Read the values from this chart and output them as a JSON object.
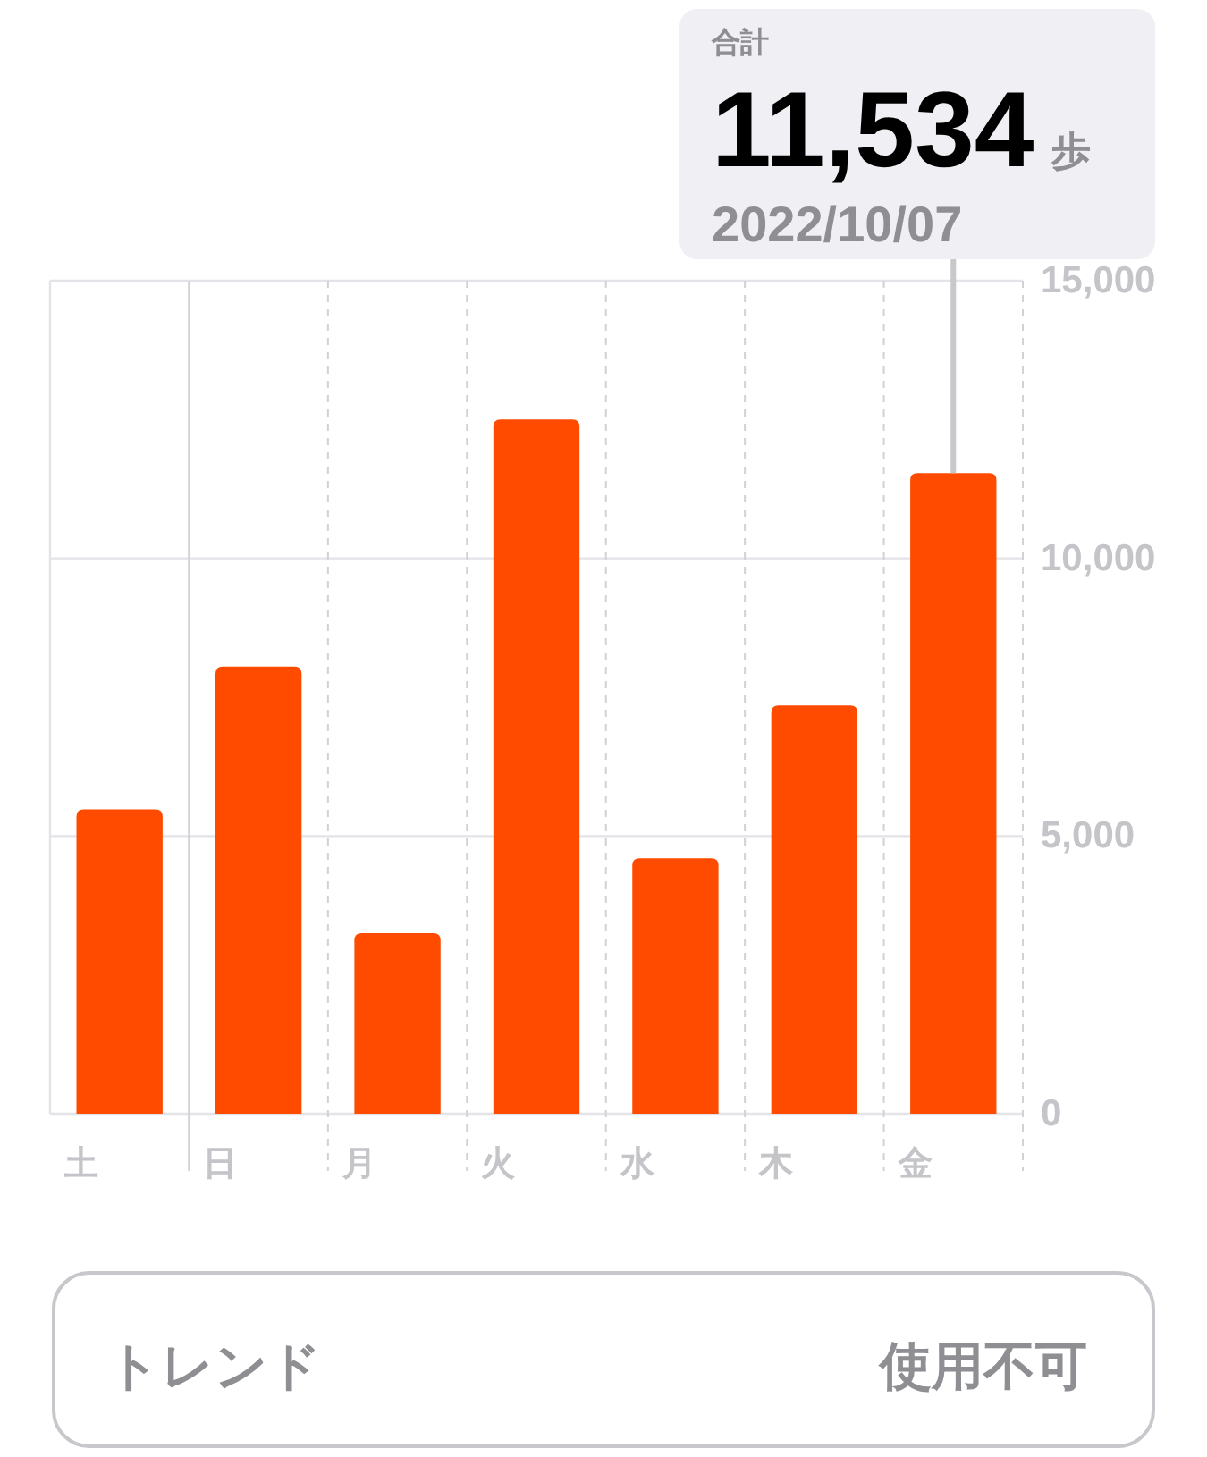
{
  "chart_data": [
    {
      "type": "bar",
      "subtitle": "2022/10/07",
      "categories": [
        "土",
        "日",
        "月",
        "火",
        "水",
        "木",
        "金"
      ],
      "values": [
        5480,
        8050,
        3250,
        12500,
        4600,
        7350,
        11534
      ],
      "color": "#ff4b00",
      "ylim": [
        0,
        15000
      ],
      "yticks": [
        0,
        {
          "value": 5000,
          "label": "5,000"
        },
        {
          "value": 10000,
          "label": "10,000"
        },
        {
          "value": 15000,
          "label": "15,000"
        }
      ],
      "grid": true,
      "ref_lines": [
        {
          "axis": "x",
          "value": "日",
          "color": "#d1d1d6",
          "line_style": "solid"
        }
      ],
      "annotations": [
        "合計",
        {
          "text": "11,534",
          "x": "金",
          "y": 11534
        },
        "歩"
      ]
    },
    {
      "type": "other",
      "annotations": [
        "トレンド",
        "使用不可"
      ]
    }
  ]
}
